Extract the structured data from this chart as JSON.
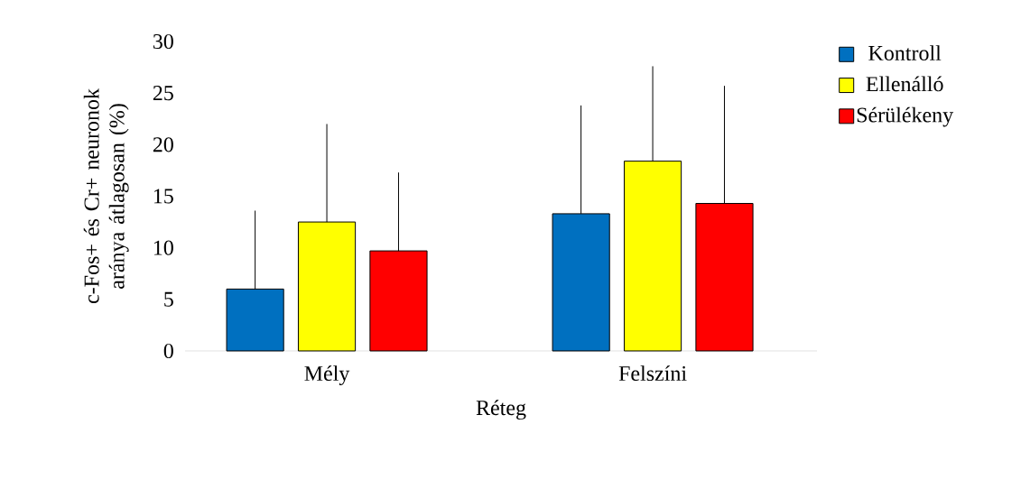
{
  "chart_data": {
    "type": "bar",
    "xlabel": "Réteg",
    "ylabel": "c-Fos+ és Cr+ neuronok aránya átlagosan (%)",
    "categories": [
      "Mély",
      "Felszíni"
    ],
    "series": [
      {
        "name": "Kontroll",
        "color": "#0070c0",
        "values": [
          6.0,
          13.3
        ],
        "errors": [
          [
            6.0,
            13.6
          ],
          [
            13.3,
            23.8
          ]
        ]
      },
      {
        "name": "Ellenálló",
        "color": "#ffff00",
        "values": [
          12.5,
          18.4
        ],
        "errors": [
          [
            12.5,
            22.0
          ],
          [
            18.4,
            27.6
          ]
        ]
      },
      {
        "name": "Sérülékeny",
        "color": "#ff0000",
        "values": [
          9.7,
          14.3
        ],
        "errors": [
          [
            9.7,
            17.3
          ],
          [
            14.3,
            25.7
          ]
        ]
      }
    ],
    "ylim": [
      0,
      30
    ],
    "yticks": [
      0,
      5,
      10,
      15,
      20,
      25,
      30
    ],
    "legend": "top right"
  }
}
